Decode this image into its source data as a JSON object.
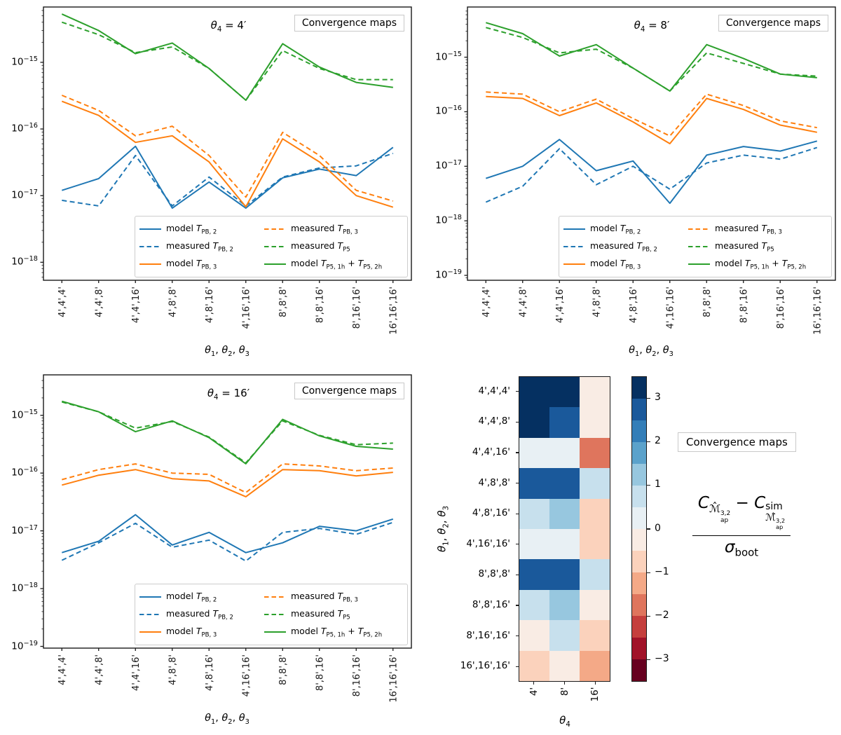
{
  "annotation_box": "Convergence maps",
  "series_colors": {
    "blue": "#1f77b4",
    "orange": "#ff7f0e",
    "green": "#2ca02c"
  },
  "palette_rdbu": [
    "#67001f",
    "#a11228",
    "#c53f3d",
    "#df755d",
    "#f4a987",
    "#fbd2bc",
    "#f9ece4",
    "#e8f0f4",
    "#c7e0ed",
    "#97c7df",
    "#5ba2cb",
    "#337eb8",
    "#1a599b",
    "#053061"
  ],
  "categories": [
    "4',4',4'",
    "4',4',8'",
    "4',4',16'",
    "4',8',8'",
    "4',8',16'",
    "4',16',16'",
    "8',8',8'",
    "8',8',16'",
    "8',16',16'",
    "16',16',16'"
  ],
  "xlabel_html": "<i>θ</i><sub>1</sub>, <i>θ</i><sub>2</sub>, <i>θ</i><sub>3</sub>",
  "legend_entries": [
    {
      "label_html": "model <i>T</i><sub>PB, 2</sub>",
      "color": "blue",
      "dashed": false
    },
    {
      "label_html": "measured <i>T</i><sub>PB, 2</sub>",
      "color": "blue",
      "dashed": true
    },
    {
      "label_html": "model <i>T</i><sub>PB, 3</sub>",
      "color": "orange",
      "dashed": false
    },
    {
      "label_html": "measured <i>T</i><sub>PB, 3</sub>",
      "color": "orange",
      "dashed": true
    },
    {
      "label_html": "measured <i>T</i><sub>P5</sub>",
      "color": "green",
      "dashed": true
    },
    {
      "label_html": "model <i>T</i><sub>P5, 1h</sub> + <i>T</i><sub>P5, 2h</sub>",
      "color": "green",
      "dashed": false
    }
  ],
  "chart_data": [
    {
      "type": "line",
      "title_html": "<i>θ</i><sub>4</sub> = 4′",
      "title_text": "theta4 = 4'",
      "ylabel": "",
      "ylim_exp": [
        -18.27,
        -14.17
      ],
      "ytick_exps": [
        -15,
        -16,
        -17,
        -18
      ],
      "categories": [
        "4',4',4'",
        "4',4',8'",
        "4',4',16'",
        "4',8',8'",
        "4',8',16'",
        "4',16',16'",
        "8',8',8'",
        "8',8',16'",
        "8',16',16'",
        "16',16',16'"
      ],
      "series": [
        {
          "name": "model T_PB,2",
          "color": "blue",
          "dashed": false,
          "values": [
            1.2e-17,
            1.8e-17,
            5.5e-17,
            6.5e-18,
            1.6e-17,
            6.5e-18,
            1.85e-17,
            2.5e-17,
            2e-17,
            5.3e-17
          ]
        },
        {
          "name": "measured T_PB,2",
          "color": "blue",
          "dashed": true,
          "values": [
            8.5e-18,
            7e-18,
            4e-17,
            7e-18,
            1.9e-17,
            7e-18,
            1.9e-17,
            2.6e-17,
            2.8e-17,
            4.3e-17
          ]
        },
        {
          "name": "model T_PB,3",
          "color": "orange",
          "dashed": false,
          "values": [
            2.6e-16,
            1.6e-16,
            6.3e-17,
            7.9e-17,
            3.2e-17,
            6.8e-18,
            7.1e-17,
            3.2e-17,
            1e-17,
            6.7e-18
          ]
        },
        {
          "name": "measured T_PB,3",
          "color": "orange",
          "dashed": true,
          "values": [
            3.2e-16,
            1.9e-16,
            7.9e-17,
            1.1e-16,
            4e-17,
            9.5e-18,
            8.9e-17,
            4e-17,
            1.2e-17,
            8.3e-18
          ]
        },
        {
          "name": "measured T_P5",
          "color": "green",
          "dashed": true,
          "values": [
            4e-15,
            2.6e-15,
            1.4e-15,
            1.7e-15,
            8.1e-16,
            2.7e-16,
            1.5e-15,
            8.1e-16,
            5.5e-16,
            5.5e-16
          ]
        },
        {
          "name": "model T_P5,1h + T_P5,2h",
          "color": "green",
          "dashed": false,
          "values": [
            5.3e-15,
            3e-15,
            1.35e-15,
            1.95e-15,
            8.1e-16,
            2.7e-16,
            1.9e-15,
            8.5e-16,
            5e-16,
            4.2e-16
          ]
        }
      ]
    },
    {
      "type": "line",
      "title_html": "<i>θ</i><sub>4</sub> = 8′",
      "title_text": "theta4 = 8'",
      "ylabel": "",
      "ylim_exp": [
        -19.09,
        -14.08
      ],
      "ytick_exps": [
        -15,
        -16,
        -17,
        -18,
        -19
      ],
      "categories": [
        "4',4',4'",
        "4',4',8'",
        "4',4',16'",
        "4',8',8'",
        "4',8',16'",
        "4',16',16'",
        "8',8',8'",
        "8',8',16'",
        "8',16',16'",
        "16',16',16'"
      ],
      "series": [
        {
          "name": "model T_PB,2",
          "color": "blue",
          "dashed": false,
          "values": [
            6e-18,
            1e-17,
            3.1e-17,
            8.3e-18,
            1.25e-17,
            2.1e-18,
            1.6e-17,
            2.3e-17,
            1.9e-17,
            2.9e-17
          ]
        },
        {
          "name": "measured T_PB,2",
          "color": "blue",
          "dashed": true,
          "values": [
            2.2e-18,
            4.3e-18,
            2.1e-17,
            4.6e-18,
            1e-17,
            3.8e-18,
            1.15e-17,
            1.6e-17,
            1.35e-17,
            2.2e-17
          ]
        },
        {
          "name": "model T_PB,3",
          "color": "orange",
          "dashed": false,
          "values": [
            1.9e-16,
            1.75e-16,
            8.5e-17,
            1.45e-16,
            6.5e-17,
            2.6e-17,
            1.75e-16,
            1.1e-16,
            5.7e-17,
            4.2e-17
          ]
        },
        {
          "name": "measured T_PB,3",
          "color": "orange",
          "dashed": true,
          "values": [
            2.3e-16,
            2.1e-16,
            1e-16,
            1.7e-16,
            7.5e-17,
            3.6e-17,
            2.1e-16,
            1.3e-16,
            6.8e-17,
            5.1e-17
          ]
        },
        {
          "name": "measured T_P5",
          "color": "green",
          "dashed": true,
          "values": [
            3.5e-15,
            2.3e-15,
            1.2e-15,
            1.4e-15,
            6.3e-16,
            2.4e-16,
            1.2e-15,
            7.7e-16,
            4.9e-16,
            4.5e-16
          ]
        },
        {
          "name": "model T_P5,1h + T_P5,2h",
          "color": "green",
          "dashed": false,
          "values": [
            4.3e-15,
            2.7e-15,
            1.05e-15,
            1.7e-15,
            6.3e-16,
            2.4e-16,
            1.7e-15,
            9.5e-16,
            4.9e-16,
            4.2e-16
          ]
        }
      ]
    },
    {
      "type": "line",
      "title_html": "<i>θ</i><sub>4</sub> = 16′",
      "title_text": "theta4 = 16'",
      "ylabel": "",
      "ylim_exp": [
        -19.03,
        -14.3
      ],
      "ytick_exps": [
        -15,
        -16,
        -17,
        -18,
        -19
      ],
      "categories": [
        "4',4',4'",
        "4',4',8'",
        "4',4',16'",
        "4',8',8'",
        "4',8',16'",
        "4',16',16'",
        "8',8',8'",
        "8',8',16'",
        "8',16',16'",
        "16',16',16'"
      ],
      "series": [
        {
          "name": "model T_PB,2",
          "color": "blue",
          "dashed": false,
          "values": [
            4.2e-18,
            6.6e-18,
            1.9e-17,
            5.7e-18,
            9.4e-18,
            4.2e-18,
            6.2e-18,
            1.2e-17,
            1e-17,
            1.6e-17
          ]
        },
        {
          "name": "measured T_PB,2",
          "color": "blue",
          "dashed": true,
          "values": [
            3.1e-18,
            6.2e-18,
            1.35e-17,
            5.2e-18,
            6.9e-18,
            3e-18,
            9.4e-18,
            1.1e-17,
            8.7e-18,
            1.4e-17
          ]
        },
        {
          "name": "model T_PB,3",
          "color": "orange",
          "dashed": false,
          "values": [
            6.2e-17,
            9.2e-17,
            1.15e-16,
            8e-17,
            7.3e-17,
            3.9e-17,
            1.15e-16,
            1.1e-16,
            8.9e-17,
            1.03e-16
          ]
        },
        {
          "name": "measured T_PB,3",
          "color": "orange",
          "dashed": true,
          "values": [
            7.7e-17,
            1.15e-16,
            1.44e-16,
            1e-16,
            9.5e-17,
            4.6e-17,
            1.44e-16,
            1.33e-16,
            1.1e-16,
            1.22e-16
          ]
        },
        {
          "name": "measured T_P5",
          "color": "green",
          "dashed": true,
          "values": [
            1.7e-15,
            1.15e-15,
            6e-16,
            7.8e-16,
            4.2e-16,
            1.5e-16,
            8e-16,
            4.5e-16,
            3.1e-16,
            3.3e-16
          ]
        },
        {
          "name": "model T_P5,1h + T_P5,2h",
          "color": "green",
          "dashed": false,
          "values": [
            1.75e-15,
            1.15e-15,
            5.2e-16,
            8e-16,
            4.1e-16,
            1.45e-16,
            8.5e-16,
            4.4e-16,
            2.9e-16,
            2.6e-16
          ]
        }
      ]
    },
    {
      "type": "heatmap",
      "rows": [
        "4',4',4'",
        "4',4',8'",
        "4',4',16'",
        "4',8',8'",
        "4',8',16'",
        "4',16',16'",
        "8',8',8'",
        "8',8',16'",
        "8',16',16'",
        "16',16',16'"
      ],
      "cols": [
        "4'",
        "8'",
        "16'"
      ],
      "xlabel_html": "<i>θ</i><sub>4</sub>",
      "ylabel_html": "<i>θ</i><sub>1</sub>, <i>θ</i><sub>2</sub>, <i>θ</i><sub>3</sub>",
      "vmin": -3.5,
      "vmax": 3.5,
      "colorbar_ticks": [
        3,
        2,
        1,
        0,
        -1,
        -2,
        -3
      ],
      "values": [
        [
          3.4,
          3.4,
          -0.3
        ],
        [
          3.4,
          2.6,
          -0.3
        ],
        [
          0.3,
          0.3,
          -1.7
        ],
        [
          2.7,
          2.7,
          0.8
        ],
        [
          0.8,
          1.3,
          -0.7
        ],
        [
          0.3,
          0.3,
          -0.7
        ],
        [
          2.7,
          2.7,
          0.8
        ],
        [
          0.8,
          1.2,
          -0.3
        ],
        [
          -0.3,
          0.6,
          -0.8
        ],
        [
          -0.7,
          -0.3,
          -1.2
        ]
      ],
      "formula": {
        "numerator_html": "<i>C</i><span class='sb'>ℳ̂<span class='vs'><span>3,2</span><span>ap</span></span></span> − <i>C</i><span class='vs lg'><span>sim</span><span>ℳ̂<span class='vs'><span>3,2</span><span>ap</span></span></span></span>",
        "denominator_html": "<i>σ</i><sub>boot</sub>"
      }
    }
  ]
}
